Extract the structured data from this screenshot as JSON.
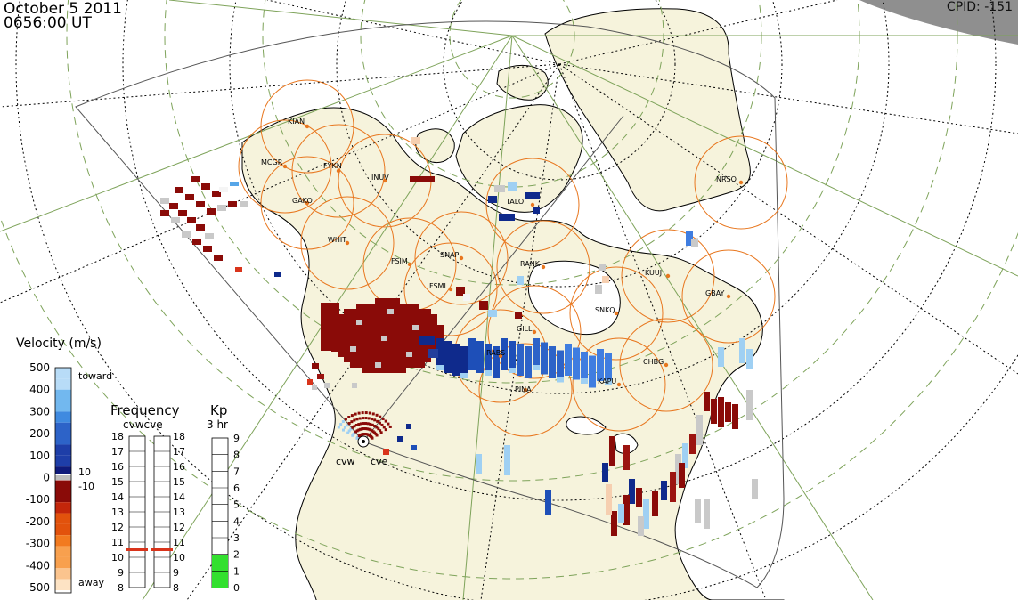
{
  "header": {
    "date": "October 5 2011",
    "time": "0656:00 UT",
    "cpid": "CPID: -151"
  },
  "stations": [
    {
      "label": "KIAN"
    },
    {
      "label": "MCGR"
    },
    {
      "label": "FYKN"
    },
    {
      "label": "INUV"
    },
    {
      "label": "GAKO"
    },
    {
      "label": "WHIT"
    },
    {
      "label": "FSIM"
    },
    {
      "label": "SNAP"
    },
    {
      "label": "FSMI"
    },
    {
      "label": "RANK"
    },
    {
      "label": "TALO"
    },
    {
      "label": "NRSQ"
    },
    {
      "label": "KUUJ"
    },
    {
      "label": "GBAY"
    },
    {
      "label": "SNKQ"
    },
    {
      "label": "GILL"
    },
    {
      "label": "CHBG"
    },
    {
      "label": "KAPU"
    },
    {
      "label": "PINA"
    },
    {
      "label": "RABS"
    }
  ],
  "radars": [
    {
      "label": "cvw"
    },
    {
      "label": "cve"
    }
  ],
  "velocity_scale": {
    "title": "Velocity (m/s)",
    "ticks": [
      "500",
      "400",
      "300",
      "200",
      "100",
      "0",
      "-100",
      "-200",
      "-300",
      "-400",
      "-500"
    ],
    "toward": "toward",
    "away": "away",
    "plus10": "10",
    "minus10": "-10",
    "colors": [
      "#fde3c4",
      "#fbc48e",
      "#f8a04e",
      "#f27a1f",
      "#e2520c",
      "#c3260a",
      "#8a0b08",
      "#ffffff",
      "#0f1a7a",
      "#1e3ea8",
      "#2d63c8",
      "#3f8ae0",
      "#72b8ef",
      "#b8dcf7"
    ]
  },
  "frequency": {
    "title": "Frequency",
    "subtitle": "cvwcve",
    "ticks": [
      "18",
      "17",
      "16",
      "15",
      "14",
      "13",
      "12",
      "11",
      "10",
      "9",
      "8"
    ],
    "cvw_value": 10.5,
    "cve_value": 10.5,
    "marker_color": "#d9341b"
  },
  "kp": {
    "title": "Kp",
    "subtitle": "3 hr",
    "ticks": [
      "9",
      "8",
      "7",
      "6",
      "5",
      "4",
      "3",
      "2",
      "1",
      "0"
    ],
    "value": 2,
    "fill_color": "#33e02f"
  }
}
